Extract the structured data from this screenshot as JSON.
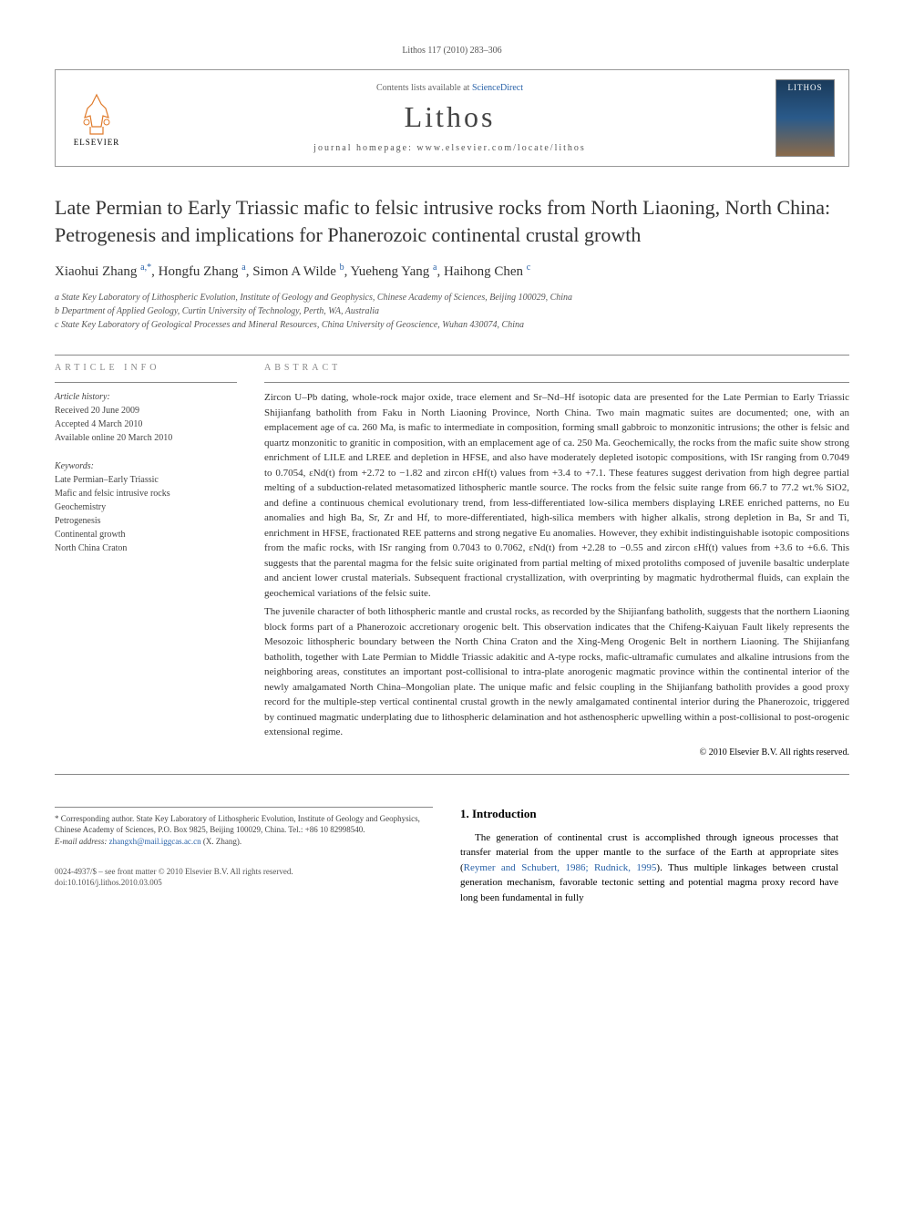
{
  "header": {
    "citation": "Lithos 117 (2010) 283–306"
  },
  "banner": {
    "elsevier_label": "ELSEVIER",
    "contents_prefix": "Contents lists available at ",
    "contents_link": "ScienceDirect",
    "journal_name": "Lithos",
    "homepage_prefix": "journal homepage: ",
    "homepage_url": "www.elsevier.com/locate/lithos",
    "cover_label": "LITHOS"
  },
  "article": {
    "title": "Late Permian to Early Triassic mafic to felsic intrusive rocks from North Liaoning, North China: Petrogenesis and implications for Phanerozoic continental crustal growth",
    "authors_html": "Xiaohui Zhang <sup class='author-sup'>a,*</sup>, Hongfu Zhang <sup class='author-sup'>a</sup>, Simon A Wilde <sup class='author-sup'>b</sup>, Yueheng Yang <sup class='author-sup'>a</sup>, Haihong Chen <sup class='author-sup'>c</sup>",
    "affiliations": [
      "a State Key Laboratory of Lithospheric Evolution, Institute of Geology and Geophysics, Chinese Academy of Sciences, Beijing 100029, China",
      "b Department of Applied Geology, Curtin University of Technology, Perth, WA, Australia",
      "c State Key Laboratory of Geological Processes and Mineral Resources, China University of Geoscience, Wuhan 430074, China"
    ]
  },
  "info": {
    "heading": "ARTICLE INFO",
    "history_label": "Article history:",
    "history": [
      "Received 20 June 2009",
      "Accepted 4 March 2010",
      "Available online 20 March 2010"
    ],
    "keywords_label": "Keywords:",
    "keywords": [
      "Late Permian–Early Triassic",
      "Mafic and felsic intrusive rocks",
      "Geochemistry",
      "Petrogenesis",
      "Continental growth",
      "North China Craton"
    ]
  },
  "abstract": {
    "heading": "ABSTRACT",
    "p1": "Zircon U–Pb dating, whole-rock major oxide, trace element and Sr–Nd–Hf isotopic data are presented for the Late Permian to Early Triassic Shijianfang batholith from Faku in North Liaoning Province, North China. Two main magmatic suites are documented; one, with an emplacement age of ca. 260 Ma, is mafic to intermediate in composition, forming small gabbroic to monzonitic intrusions; the other is felsic and quartz monzonitic to granitic in composition, with an emplacement age of ca. 250 Ma. Geochemically, the rocks from the mafic suite show strong enrichment of LILE and LREE and depletion in HFSE, and also have moderately depleted isotopic compositions, with ISr ranging from 0.7049 to 0.7054, εNd(t) from +2.72 to −1.82 and zircon εHf(t) values from +3.4 to +7.1. These features suggest derivation from high degree partial melting of a subduction-related metasomatized lithospheric mantle source. The rocks from the felsic suite range from 66.7 to 77.2 wt.% SiO2, and define a continuous chemical evolutionary trend, from less-differentiated low-silica members displaying LREE enriched patterns, no Eu anomalies and high Ba, Sr, Zr and Hf, to more-differentiated, high-silica members with higher alkalis, strong depletion in Ba, Sr and Ti, enrichment in HFSE, fractionated REE patterns and strong negative Eu anomalies. However, they exhibit indistinguishable isotopic compositions from the mafic rocks, with ISr ranging from 0.7043 to 0.7062, εNd(t) from +2.28 to −0.55 and zircon εHf(t) values from +3.6 to +6.6. This suggests that the parental magma for the felsic suite originated from partial melting of mixed protoliths composed of juvenile basaltic underplate and ancient lower crustal materials. Subsequent fractional crystallization, with overprinting by magmatic hydrothermal fluids, can explain the geochemical variations of the felsic suite.",
    "p2": "The juvenile character of both lithospheric mantle and crustal rocks, as recorded by the Shijianfang batholith, suggests that the northern Liaoning block forms part of a Phanerozoic accretionary orogenic belt. This observation indicates that the Chifeng-Kaiyuan Fault likely represents the Mesozoic lithospheric boundary between the North China Craton and the Xing-Meng Orogenic Belt in northern Liaoning. The Shijianfang batholith, together with Late Permian to Middle Triassic adakitic and A-type rocks, mafic-ultramafic cumulates and alkaline intrusions from the neighboring areas, constitutes an important post-collisional to intra-plate anorogenic magmatic province within the continental interior of the newly amalgamated North China–Mongolian plate. The unique mafic and felsic coupling in the Shijianfang batholith provides a good proxy record for the multiple-step vertical continental crustal growth in the newly amalgamated continental interior during the Phanerozoic, triggered by continued magmatic underplating due to lithospheric delamination and hot asthenospheric upwelling within a post-collisional to post-orogenic extensional regime.",
    "copyright": "© 2010 Elsevier B.V. All rights reserved."
  },
  "intro": {
    "heading": "1. Introduction",
    "text_part1": "The generation of continental crust is accomplished through igneous processes that transfer material from the upper mantle to the surface of the Earth at appropriate sites (",
    "citation": "Reymer and Schubert, 1986; Rudnick, 1995",
    "text_part2": "). Thus multiple linkages between crustal generation mechanism, favorable tectonic setting and potential magma proxy record have long been fundamental in fully"
  },
  "footnote": {
    "corresp": "* Corresponding author. State Key Laboratory of Lithospheric Evolution, Institute of Geology and Geophysics, Chinese Academy of Sciences, P.O. Box 9825, Beijing 100029, China. Tel.: +86 10 82998540.",
    "email_label": "E-mail address: ",
    "email": "zhangxh@mail.iggcas.ac.cn",
    "email_suffix": " (X. Zhang)."
  },
  "bottom": {
    "line1": "0024-4937/$ – see front matter © 2010 Elsevier B.V. All rights reserved.",
    "line2": "doi:10.1016/j.lithos.2010.03.005"
  },
  "colors": {
    "link": "#2962a8",
    "body_text": "#333333",
    "muted": "#888888"
  }
}
